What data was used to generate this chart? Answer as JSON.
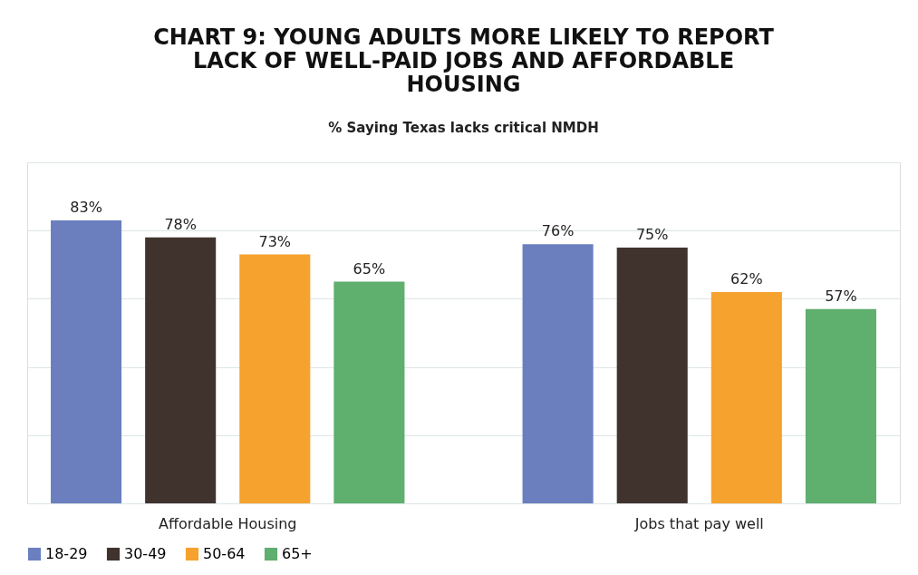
{
  "chart_data": {
    "type": "bar",
    "title": "CHART 9: YOUNG ADULTS MORE LIKELY TO REPORT LACK OF WELL-PAID JOBS AND AFFORDABLE HOUSING",
    "subtitle": "% Saying Texas lacks critical NMDH",
    "categories": [
      "Affordable Housing",
      "Jobs that pay well"
    ],
    "series": [
      {
        "name": "18-29",
        "color": "#6b7fbf",
        "values": [
          83,
          76
        ],
        "value_labels": [
          "83%",
          "76%"
        ]
      },
      {
        "name": "30-49",
        "color": "#40332e",
        "values": [
          78,
          75
        ],
        "value_labels": [
          "78%",
          "75%"
        ]
      },
      {
        "name": "50-64",
        "color": "#f6a22f",
        "values": [
          73,
          62
        ],
        "value_labels": [
          "73%",
          "62%"
        ]
      },
      {
        "name": "65+",
        "color": "#5faf6e",
        "values": [
          65,
          57
        ],
        "value_labels": [
          "65%",
          "57%"
        ]
      }
    ],
    "ylim": [
      0,
      100
    ],
    "yticks": [
      {
        "value": 0,
        "label": null
      },
      {
        "value": 20,
        "label": null
      },
      {
        "value": 40,
        "label": null
      },
      {
        "value": 60,
        "label": null
      },
      {
        "value": 80,
        "label": null
      },
      {
        "value": 100,
        "label": null
      }
    ],
    "tick_labels": "x",
    "grid": "y",
    "legend": "bottom"
  }
}
